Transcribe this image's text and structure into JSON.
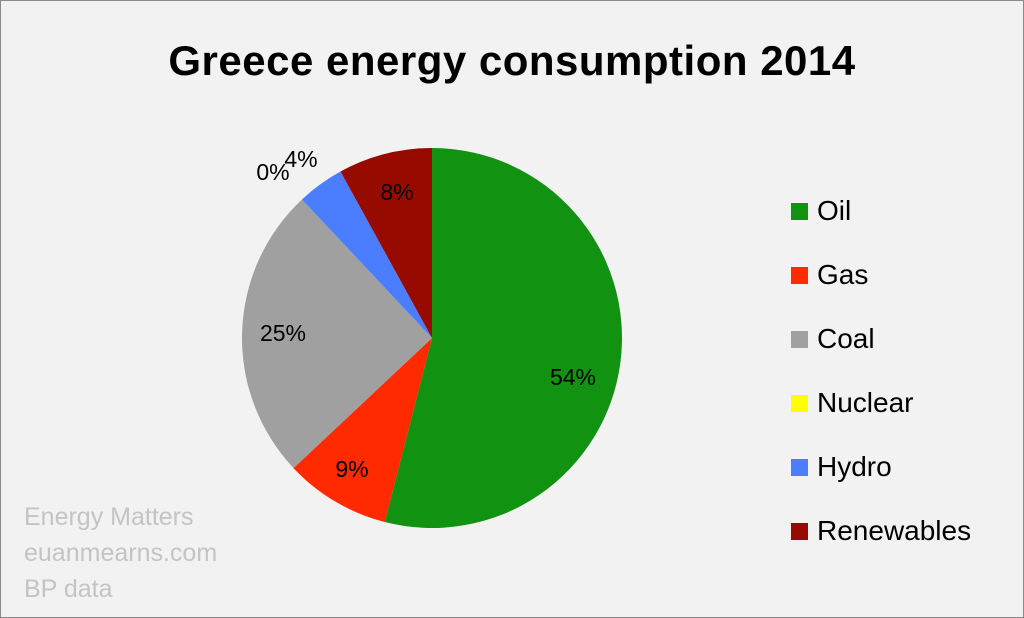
{
  "chart_data": {
    "type": "pie",
    "title": "Greece energy consumption 2014",
    "labels": [
      "Oil",
      "Gas",
      "Coal",
      "Nuclear",
      "Hydro",
      "Renewables"
    ],
    "values": [
      54,
      9,
      25,
      0,
      4,
      8
    ],
    "data_labels": [
      "54%",
      "9%",
      "25%",
      "0%",
      "4%",
      "8%"
    ],
    "colors": [
      "#119211",
      "#ff2a00",
      "#a0a0a0",
      "#ffff00",
      "#4a7eff",
      "#960a00"
    ],
    "start_angle": "12 o'clock",
    "direction": "clockwise",
    "legend_position": "right"
  },
  "source_lines": [
    "Energy Matters",
    "euanmearns.com",
    "BP data"
  ]
}
